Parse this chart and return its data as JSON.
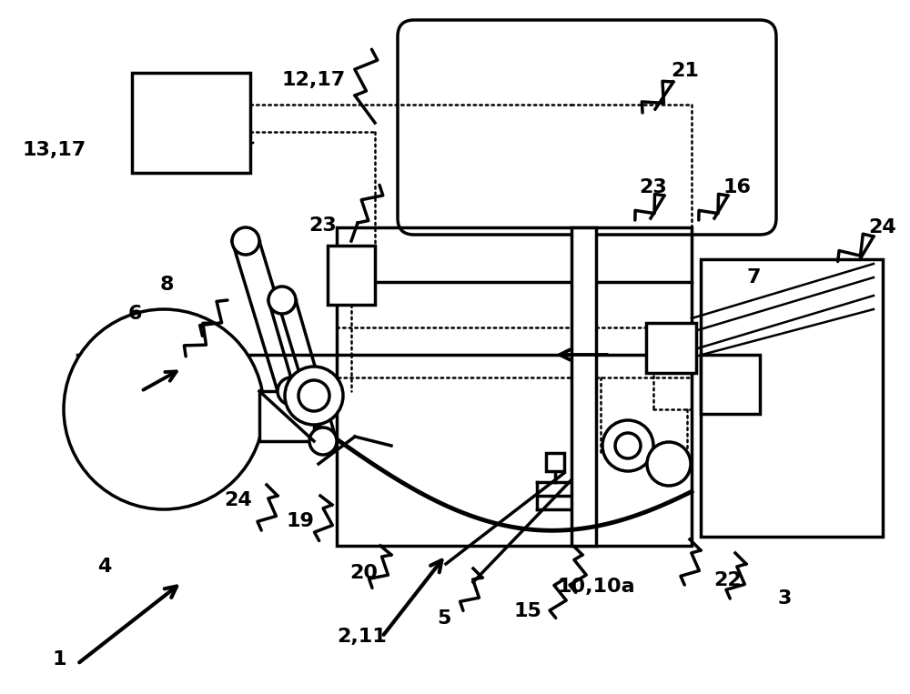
{
  "bg": "#ffffff",
  "lc": "#000000",
  "lw": 2.5,
  "lw_thin": 1.8,
  "fs": 16,
  "figsize": [
    10.0,
    7.63
  ]
}
